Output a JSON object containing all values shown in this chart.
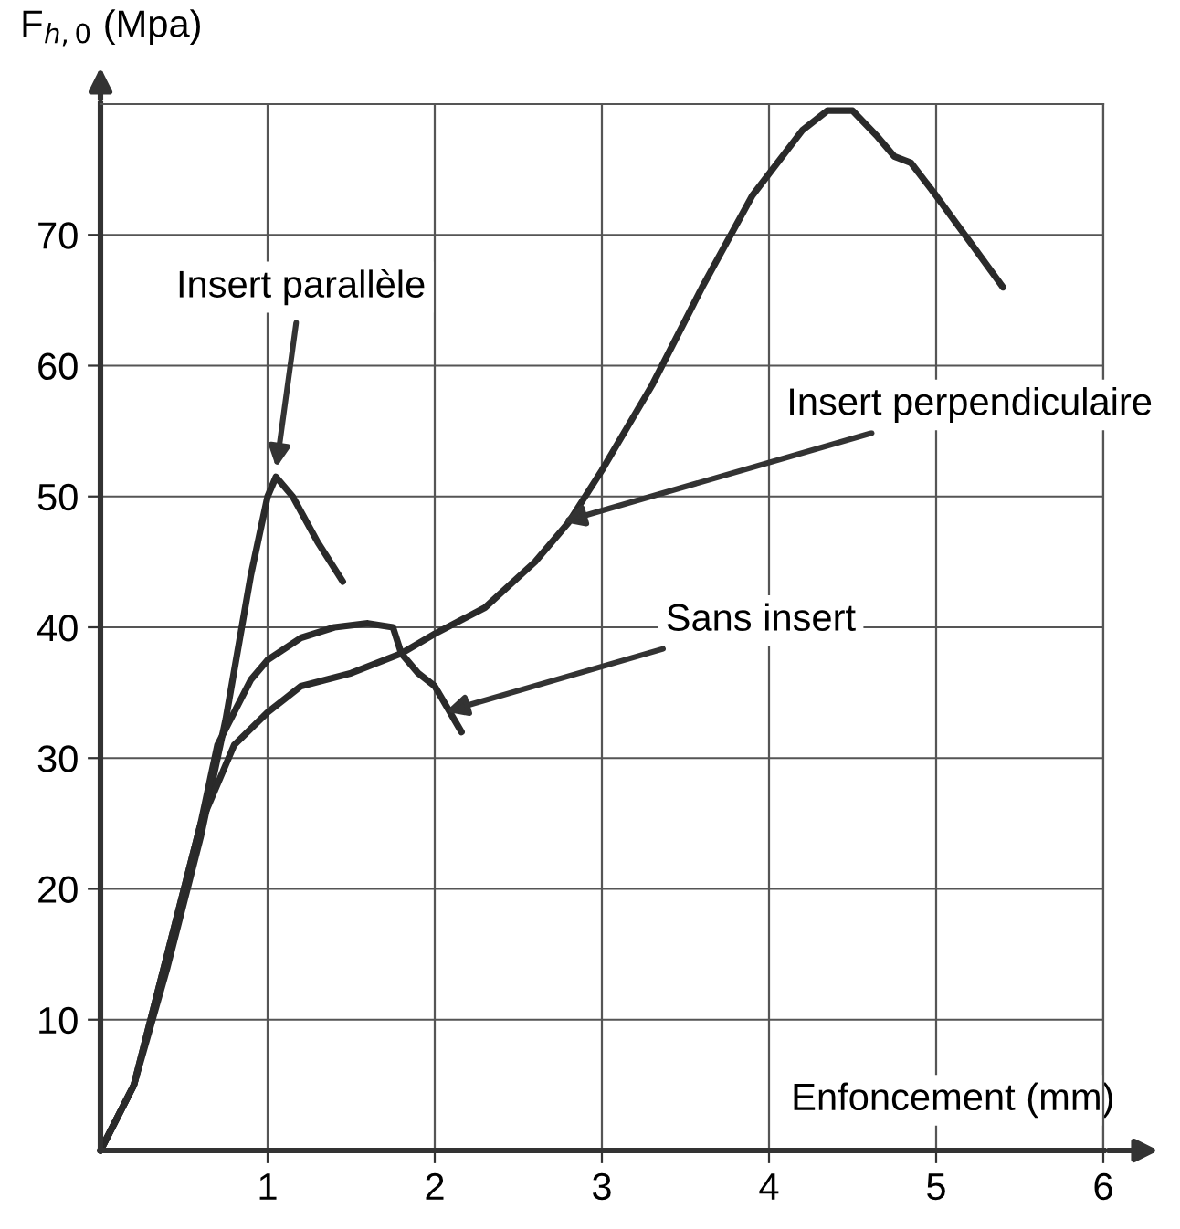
{
  "chart_data": {
    "type": "line",
    "xlabel": "Enfoncement (mm)",
    "ylabel": "F$_{h,0}$ (Mpa)",
    "xlim": [
      0,
      6
    ],
    "ylim": [
      0,
      80
    ],
    "xticks": [
      1,
      2,
      3,
      4,
      5,
      6
    ],
    "yticks": [
      10,
      20,
      30,
      40,
      50,
      60,
      70
    ],
    "grid": true,
    "marker": "none",
    "line_style": "solid",
    "series": [
      {
        "color": "#2a2a2a",
        "x": [
          0,
          0.2,
          0.4,
          0.6,
          0.75,
          0.9,
          1.0,
          1.05,
          1.15,
          1.3,
          1.45
        ],
        "values": [
          0,
          5,
          14,
          24,
          33,
          44,
          50,
          51.5,
          50,
          46.5,
          43.5
        ]
      },
      {
        "color": "#2a2a2a",
        "x": [
          0,
          0.2,
          0.4,
          0.6,
          0.7,
          0.8,
          1.0,
          1.2,
          1.5,
          1.8,
          2.0,
          2.3,
          2.6,
          2.8,
          3.0,
          3.3,
          3.6,
          3.9,
          4.2,
          4.35,
          4.5,
          4.65,
          4.75,
          4.85,
          5.0,
          5.2,
          5.4
        ],
        "values": [
          0,
          5,
          15,
          25,
          28,
          31,
          33.5,
          35.5,
          36.5,
          38,
          39.5,
          41.5,
          45,
          48,
          52,
          58.5,
          66,
          73,
          78,
          79.5,
          79.5,
          77.5,
          76,
          75.5,
          73,
          69.5,
          66
        ]
      },
      {
        "color": "#2a2a2a",
        "x": [
          0,
          0.2,
          0.4,
          0.6,
          0.7,
          0.9,
          1.0,
          1.2,
          1.4,
          1.6,
          1.75,
          1.8,
          1.9,
          2.0,
          2.16
        ],
        "values": [
          0,
          5,
          15,
          25,
          31,
          36,
          37.5,
          39.2,
          40,
          40.3,
          40,
          38,
          36.5,
          35.5,
          32
        ]
      }
    ],
    "annotations": [
      {
        "text": "Insert parallèle",
        "x": 1.05,
        "y": 52
      },
      {
        "text": "Insert perpendiculaire",
        "x": 2.75,
        "y": 48
      },
      {
        "text": "Sans insert",
        "x": 2.05,
        "y": 33.5
      }
    ]
  }
}
